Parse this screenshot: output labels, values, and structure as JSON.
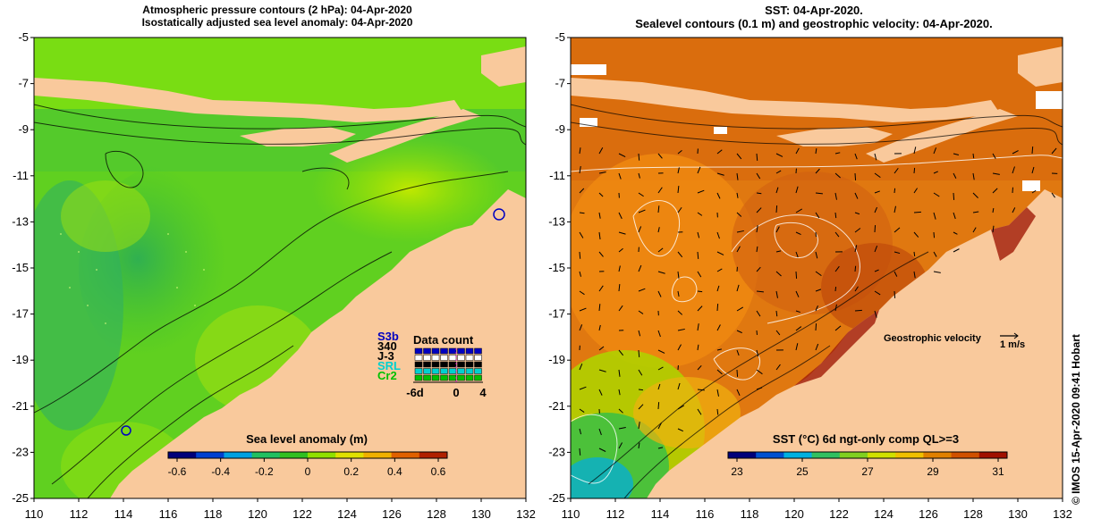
{
  "left_map": {
    "title_line1": "Atmospheric pressure contours (2 hPa): 04-Apr-2020",
    "title_line2": "Isostatically adjusted sea level anomaly: 04-Apr-2020",
    "colorbar": {
      "title": "Sea level anomaly (m)",
      "ticks": [
        "-0.6",
        "-0.4",
        "-0.2",
        "0",
        "0.2",
        "0.4",
        "0.6"
      ],
      "colors": [
        "#00007a",
        "#0040d0",
        "#00a0e0",
        "#20c060",
        "#30c020",
        "#90e000",
        "#e0e000",
        "#f0b000",
        "#e06000",
        "#b02000"
      ]
    }
  },
  "right_map": {
    "title_line1": "SST: 04-Apr-2020.",
    "title_line2": "Sealevel contours (0.1 m) and geostrophic velocity: 04-Apr-2020.",
    "colorbar": {
      "title": "SST (°C) 6d ngt-only comp QL>=3",
      "ticks": [
        "23",
        "25",
        "27",
        "29",
        "31"
      ],
      "colors": [
        "#00007a",
        "#0050d0",
        "#00b0e0",
        "#30c060",
        "#80d020",
        "#d0e000",
        "#f0c000",
        "#e08000",
        "#d05000",
        "#a01000"
      ]
    },
    "velocity_label": "Geostrophic velocity",
    "velocity_scale": "1 m/s"
  },
  "axes": {
    "y_labels": [
      "-5",
      "-7",
      "-9",
      "-11",
      "-13",
      "-15",
      "-17",
      "-19",
      "-21",
      "-23",
      "-25"
    ],
    "x_labels": [
      "110",
      "112",
      "114",
      "116",
      "118",
      "120",
      "122",
      "124",
      "126",
      "128",
      "130",
      "132"
    ]
  },
  "data_count": {
    "title": "Data count",
    "satellites": [
      "S3b",
      "340",
      "J-3",
      "SRL",
      "Cr2"
    ],
    "sat_colors": [
      "#0000c0",
      "#000000",
      "#000000",
      "#00d0d0",
      "#00c000"
    ],
    "x_labels": [
      "-6d",
      "0",
      "4"
    ]
  },
  "credit": "© IMOS 15-Apr-2020 09:41 Hobart",
  "colors": {
    "land": "#f9c99c",
    "background": "#ffffff"
  }
}
